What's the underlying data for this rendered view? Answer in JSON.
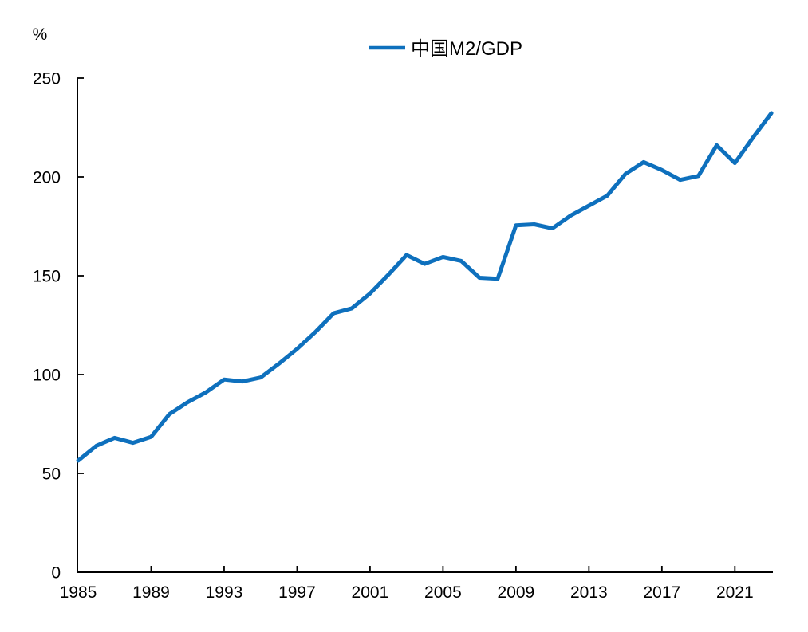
{
  "chart_data": {
    "type": "line",
    "title": "",
    "unit_label": "%",
    "xlabel": "",
    "ylabel": "%",
    "grid": false,
    "legend_position": "top-center",
    "axis_color": "#000000",
    "text_color": "#000000",
    "background_color": "#ffffff",
    "ylim": [
      0,
      250
    ],
    "y_ticks": [
      0,
      50,
      100,
      150,
      200,
      250
    ],
    "x_tick_labels": [
      "1985",
      "1989",
      "1993",
      "1997",
      "2001",
      "2005",
      "2009",
      "2013",
      "2017",
      "2021"
    ],
    "x_tick_years": [
      1985,
      1989,
      1993,
      1997,
      2001,
      2005,
      2009,
      2013,
      2017,
      2021
    ],
    "x": [
      1985,
      1986,
      1987,
      1988,
      1989,
      1990,
      1991,
      1992,
      1993,
      1994,
      1995,
      1996,
      1997,
      1998,
      1999,
      2000,
      2001,
      2002,
      2003,
      2004,
      2005,
      2006,
      2007,
      2008,
      2009,
      2010,
      2011,
      2012,
      2013,
      2014,
      2015,
      2016,
      2017,
      2018,
      2019,
      2020,
      2021,
      2022,
      2023
    ],
    "series": [
      {
        "name": "中国M2/GDP",
        "color": "#0E70BD",
        "values": [
          56.5,
          64,
          68,
          65.5,
          68.5,
          80,
          86,
          91,
          97.5,
          96.5,
          98.5,
          105.5,
          113,
          121.5,
          131,
          133.5,
          141,
          150.5,
          160.5,
          156,
          159.5,
          157.5,
          149,
          148.5,
          175.5,
          176,
          174,
          180.5,
          185.5,
          190.5,
          201.5,
          207.5,
          203.5,
          198.5,
          200.5,
          216,
          207,
          220,
          232.3
        ]
      }
    ],
    "x_range_years": [
      1985,
      2023
    ]
  }
}
